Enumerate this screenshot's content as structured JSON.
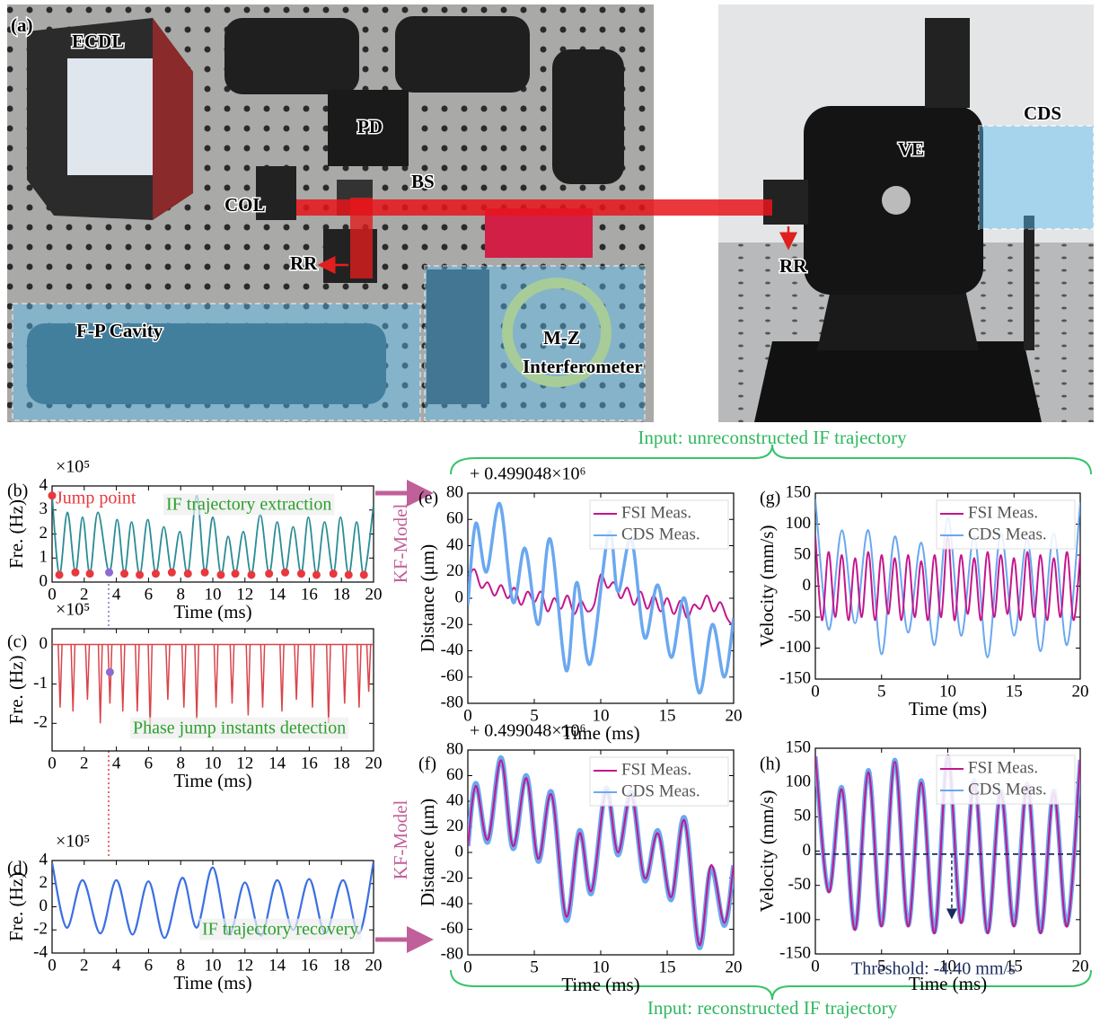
{
  "photo": {
    "panel": "(a)",
    "labels": [
      "ECDL",
      "PD",
      "BS",
      "COL",
      "RR",
      "F-P Cavity",
      "M-Z",
      "Interferometer",
      "VE",
      "CDS",
      "RR"
    ]
  },
  "model_labels": [
    "KF-Model",
    "KF-Model"
  ],
  "brackets": {
    "top": "Input: unreconstructed IF trajectory",
    "bottom": "Input: reconstructed IF trajectory"
  },
  "chart_data": [
    {
      "type": "line",
      "panel": "(b)",
      "multiplier": "×10⁵",
      "xlabel": "Time (ms)",
      "ylabel": "Fre. (Hz)",
      "xlim": [
        0,
        20
      ],
      "xticks": [
        0,
        2,
        4,
        6,
        8,
        10,
        12,
        14,
        16,
        18,
        20
      ],
      "ylim": [
        0,
        4
      ],
      "yticks": [
        0,
        1,
        2,
        3,
        4
      ],
      "series": [
        {
          "mode": "line",
          "color": "#2b8c96",
          "x": [
            0,
            0.45,
            0.95,
            1.45,
            1.9,
            2.35,
            2.85,
            3.55,
            4.05,
            4.5,
            4.95,
            5.45,
            5.95,
            6.45,
            6.95,
            7.45,
            7.95,
            8.45,
            9.0,
            9.5,
            10.0,
            10.5,
            10.95,
            11.4,
            11.9,
            12.4,
            12.95,
            13.5,
            14.0,
            14.5,
            15.0,
            15.5,
            15.95,
            16.45,
            16.95,
            17.5,
            17.95,
            18.45,
            18.95,
            19.4,
            20
          ],
          "values": [
            3.6,
            0.3,
            2.9,
            0.4,
            2.7,
            0.35,
            2.9,
            0.4,
            2.6,
            0.35,
            2.5,
            0.3,
            2.6,
            0.35,
            2.3,
            0.4,
            2.1,
            0.35,
            3.6,
            0.4,
            2.7,
            0.3,
            1.9,
            0.35,
            2.1,
            0.3,
            2.8,
            0.35,
            2.5,
            0.4,
            2.3,
            0.35,
            2.7,
            0.3,
            2.5,
            0.35,
            2.7,
            0.3,
            2.5,
            0.3,
            3.2
          ]
        },
        {
          "mode": "markers",
          "color": "#e8383d",
          "x": [
            0,
            0.45,
            1.45,
            2.35,
            4.5,
            5.45,
            6.45,
            7.45,
            8.45,
            9.5,
            10.5,
            11.4,
            12.4,
            13.5,
            14.5,
            15.5,
            16.45,
            17.5,
            18.45,
            19.4
          ],
          "values": [
            3.6,
            0.3,
            0.4,
            0.35,
            0.35,
            0.3,
            0.35,
            0.4,
            0.35,
            0.4,
            0.3,
            0.35,
            0.3,
            0.35,
            0.4,
            0.35,
            0.3,
            0.35,
            0.3,
            0.3
          ]
        },
        {
          "mode": "markers",
          "color": "#8e6bd0",
          "x": [
            3.55
          ],
          "values": [
            0.4
          ]
        }
      ],
      "annotations": [
        {
          "text": "Jump point",
          "color": "#e8383d"
        },
        {
          "text": "IF trajectory extraction",
          "color": "#2ca02c"
        }
      ]
    },
    {
      "type": "line",
      "panel": "(c)",
      "multiplier": "×10⁵",
      "xlabel": "Time (ms)",
      "ylabel": "Fre. (Hz)",
      "xlim": [
        0,
        20
      ],
      "xticks": [
        0,
        2,
        4,
        6,
        8,
        10,
        12,
        14,
        16,
        18,
        20
      ],
      "ylim": [
        -2.7,
        0.4
      ],
      "yticks": [
        -2,
        -1,
        0
      ],
      "series": [
        {
          "mode": "spikes",
          "color": "#d9454a",
          "x": [
            0.5,
            1.3,
            2.2,
            3.0,
            3.6,
            4.4,
            5.3,
            6.1,
            7.2,
            8.2,
            9.0,
            10.2,
            11.2,
            12.2,
            13.1,
            14.3,
            15.2,
            16.2,
            17.2,
            18.2,
            19.1,
            19.7
          ],
          "values": [
            -1.6,
            -1.7,
            -1.4,
            -2.0,
            -1.5,
            -1.7,
            -1.7,
            -2.1,
            -1.4,
            -1.6,
            -1.9,
            -1.6,
            -1.5,
            -1.8,
            -1.6,
            -1.7,
            -1.4,
            -1.6,
            -2.0,
            -1.5,
            -1.6,
            -1.2
          ]
        },
        {
          "mode": "markers",
          "color": "#8e6bd0",
          "x": [
            3.6
          ],
          "values": [
            -0.7
          ]
        }
      ],
      "annotations": [
        {
          "text": "Phase jump instants detection",
          "color": "#2ca02c"
        }
      ]
    },
    {
      "type": "line",
      "panel": "(d)",
      "multiplier": "×10⁵",
      "xlabel": "Time (ms)",
      "ylabel": "Fre. (Hz)",
      "xlim": [
        0,
        20
      ],
      "xticks": [
        0,
        2,
        4,
        6,
        8,
        10,
        12,
        14,
        16,
        18,
        20
      ],
      "ylim": [
        -4,
        4
      ],
      "yticks": [
        -4,
        -2,
        0,
        2,
        4
      ],
      "series": [
        {
          "mode": "line",
          "color": "#3b6fe3",
          "x": [
            0,
            0.9,
            1.9,
            3.0,
            4.0,
            5.0,
            6.0,
            7.0,
            8.1,
            9.0,
            10.0,
            11.0,
            12.0,
            13.0,
            14.0,
            15.0,
            16.0,
            17.0,
            18.1,
            19.1,
            20
          ],
          "values": [
            3.8,
            -1.8,
            2.3,
            -2.3,
            2.3,
            -2.4,
            2.2,
            -2.7,
            2.5,
            -1.8,
            3.4,
            -2.4,
            2.1,
            -2.5,
            2.3,
            -2.0,
            2.4,
            -2.3,
            2.3,
            -2.3,
            3.9
          ]
        }
      ],
      "annotations": [
        {
          "text": "IF trajectory recovery",
          "color": "#2ca02c"
        }
      ]
    },
    {
      "type": "line",
      "panel": "(e)",
      "offset": "+ 0.499048×10⁶",
      "xlabel": "Time (ms)",
      "ylabel": "Distance (μm)",
      "xlim": [
        0,
        20
      ],
      "xticks": [
        0,
        5,
        10,
        15,
        20
      ],
      "ylim": [
        -80,
        80
      ],
      "yticks": [
        -80,
        -60,
        -40,
        -20,
        0,
        20,
        40,
        60,
        80
      ],
      "legend": "upper right",
      "series": [
        {
          "name": "FSI Meas.",
          "mode": "line",
          "color": "#c4168c",
          "x": [
            0,
            0.5,
            1,
            1.5,
            2,
            2.5,
            3,
            3.5,
            4,
            4.5,
            5,
            5.5,
            6,
            6.5,
            7,
            7.5,
            8,
            8.5,
            9,
            9.5,
            10,
            10.5,
            11,
            11.5,
            12,
            12.5,
            13,
            13.5,
            14,
            14.5,
            15,
            15.5,
            16,
            16.5,
            17,
            17.5,
            18,
            18.5,
            19,
            19.5,
            20
          ],
          "values": [
            15,
            22,
            8,
            12,
            2,
            10,
            0,
            8,
            -5,
            5,
            -3,
            5,
            -10,
            0,
            -8,
            2,
            -12,
            -2,
            -10,
            -5,
            18,
            8,
            12,
            0,
            8,
            -5,
            5,
            -8,
            2,
            -10,
            0,
            -12,
            -2,
            -15,
            -5,
            -8,
            2,
            -10,
            -3,
            -15,
            -22
          ]
        },
        {
          "name": "CDS Meas.",
          "mode": "line",
          "color": "#6aa8f0",
          "x": [
            0,
            0.6,
            1.4,
            2.4,
            3.4,
            4.3,
            5.3,
            6.2,
            7.4,
            8.2,
            9.2,
            10.6,
            11.3,
            12.3,
            13.3,
            14.3,
            15.3,
            16.3,
            17.4,
            18.4,
            19.3,
            20
          ],
          "values": [
            -5,
            57,
            20,
            72,
            -3,
            38,
            -20,
            45,
            -55,
            12,
            -50,
            50,
            5,
            45,
            -30,
            10,
            -45,
            0,
            -72,
            -20,
            -60,
            -15
          ]
        }
      ]
    },
    {
      "type": "line",
      "panel": "(f)",
      "offset": "+ 0.499048×10⁶",
      "xlabel": "Time (ms)",
      "ylabel": "Distance (μm)",
      "xlim": [
        0,
        20
      ],
      "xticks": [
        0,
        5,
        10,
        15,
        20
      ],
      "ylim": [
        -80,
        80
      ],
      "yticks": [
        -80,
        -60,
        -40,
        -20,
        0,
        20,
        40,
        60,
        80
      ],
      "legend": "upper right",
      "series": [
        {
          "name": "FSI Meas.",
          "mode": "line",
          "color": "#c4168c",
          "x": [
            0,
            0.6,
            1.5,
            2.5,
            3.4,
            4.4,
            5.3,
            6.3,
            7.4,
            8.4,
            9.3,
            10.4,
            11.3,
            12.3,
            13.3,
            14.3,
            15.3,
            16.3,
            17.4,
            18.3,
            19.3,
            20
          ],
          "values": [
            5,
            52,
            10,
            72,
            5,
            58,
            -5,
            45,
            -50,
            15,
            -30,
            48,
            0,
            45,
            -20,
            15,
            -35,
            25,
            -72,
            -10,
            -55,
            -10
          ]
        },
        {
          "name": "CDS Meas.",
          "mode": "line",
          "color": "#6aa8f0",
          "x": [
            0,
            0.6,
            1.5,
            2.5,
            3.4,
            4.4,
            5.3,
            6.3,
            7.4,
            8.4,
            9.3,
            10.4,
            11.3,
            12.3,
            13.3,
            14.3,
            15.3,
            16.3,
            17.4,
            18.3,
            19.3,
            20
          ],
          "values": [
            5,
            54,
            8,
            74,
            3,
            60,
            -7,
            47,
            -53,
            17,
            -32,
            50,
            -2,
            47,
            -22,
            17,
            -37,
            27,
            -74,
            -12,
            -57,
            -10
          ]
        }
      ]
    },
    {
      "type": "line",
      "panel": "(g)",
      "xlabel": "Time (ms)",
      "ylabel": "Velocity (mm/s)",
      "xlim": [
        0,
        20
      ],
      "xticks": [
        0,
        5,
        10,
        15,
        20
      ],
      "ylim": [
        -150,
        150
      ],
      "yticks": [
        -150,
        -100,
        -50,
        0,
        50,
        100,
        150
      ],
      "legend": "upper right",
      "series": [
        {
          "name": "FSI Meas.",
          "mode": "line",
          "color": "#c4168c",
          "x": [
            0,
            0.5,
            1,
            1.5,
            2,
            2.5,
            3,
            3.5,
            4,
            4.5,
            5,
            5.5,
            6,
            6.5,
            7,
            7.5,
            8,
            8.5,
            9,
            9.5,
            10,
            10.5,
            11,
            11.5,
            12,
            12.5,
            13,
            13.5,
            14,
            14.5,
            15,
            15.5,
            16,
            16.5,
            17,
            17.5,
            18,
            18.5,
            19,
            19.5,
            20
          ],
          "values": [
            80,
            -55,
            55,
            -50,
            50,
            -55,
            45,
            -50,
            55,
            -55,
            50,
            -45,
            45,
            -55,
            50,
            -50,
            40,
            -55,
            50,
            -50,
            80,
            -55,
            50,
            -45,
            45,
            -55,
            55,
            -50,
            50,
            -45,
            45,
            -55,
            55,
            -50,
            50,
            -55,
            45,
            -50,
            55,
            -55,
            50
          ]
        },
        {
          "name": "CDS Meas.",
          "mode": "line",
          "color": "#6aa8f0",
          "x": [
            0,
            1,
            2,
            3,
            4,
            5,
            6,
            7,
            8,
            9,
            10,
            11,
            12,
            13,
            14,
            15,
            16,
            17,
            18,
            19,
            20
          ],
          "values": [
            140,
            -70,
            90,
            -60,
            90,
            -110,
            80,
            -75,
            70,
            -95,
            110,
            -80,
            80,
            -115,
            85,
            -80,
            75,
            -105,
            85,
            -95,
            135
          ]
        }
      ]
    },
    {
      "type": "line",
      "panel": "(h)",
      "xlabel": "Time (ms)",
      "ylabel": "Velocity (mm/s)",
      "xlim": [
        0,
        20
      ],
      "xticks": [
        0,
        5,
        10,
        15,
        20
      ],
      "ylim": [
        -150,
        150
      ],
      "yticks": [
        -150,
        -100,
        -50,
        0,
        50,
        100,
        150
      ],
      "legend": "upper right",
      "threshold": -4.4,
      "series": [
        {
          "name": "FSI Meas.",
          "mode": "line",
          "color": "#c4168c",
          "x": [
            0,
            1,
            2,
            3,
            4,
            5,
            6,
            7,
            8,
            9,
            10,
            11,
            12,
            13,
            14,
            15,
            16,
            17,
            18,
            19,
            20
          ],
          "values": [
            140,
            -60,
            90,
            -115,
            115,
            -110,
            130,
            -110,
            100,
            -120,
            140,
            -105,
            100,
            -120,
            85,
            -110,
            95,
            -120,
            85,
            -110,
            135
          ]
        },
        {
          "name": "CDS Meas.",
          "mode": "line",
          "color": "#6aa8f0",
          "x": [
            0,
            1,
            2,
            3,
            4,
            5,
            6,
            7,
            8,
            9,
            10,
            11,
            12,
            13,
            14,
            15,
            16,
            17,
            18,
            19,
            20
          ],
          "values": [
            138,
            -58,
            93,
            -113,
            118,
            -108,
            133,
            -108,
            103,
            -118,
            138,
            -103,
            103,
            -118,
            88,
            -108,
            98,
            -118,
            88,
            -108,
            133
          ]
        }
      ],
      "annotations": [
        {
          "text": "Threshold: -4.40 mm/s",
          "color": "#1b2b5e"
        }
      ]
    }
  ]
}
